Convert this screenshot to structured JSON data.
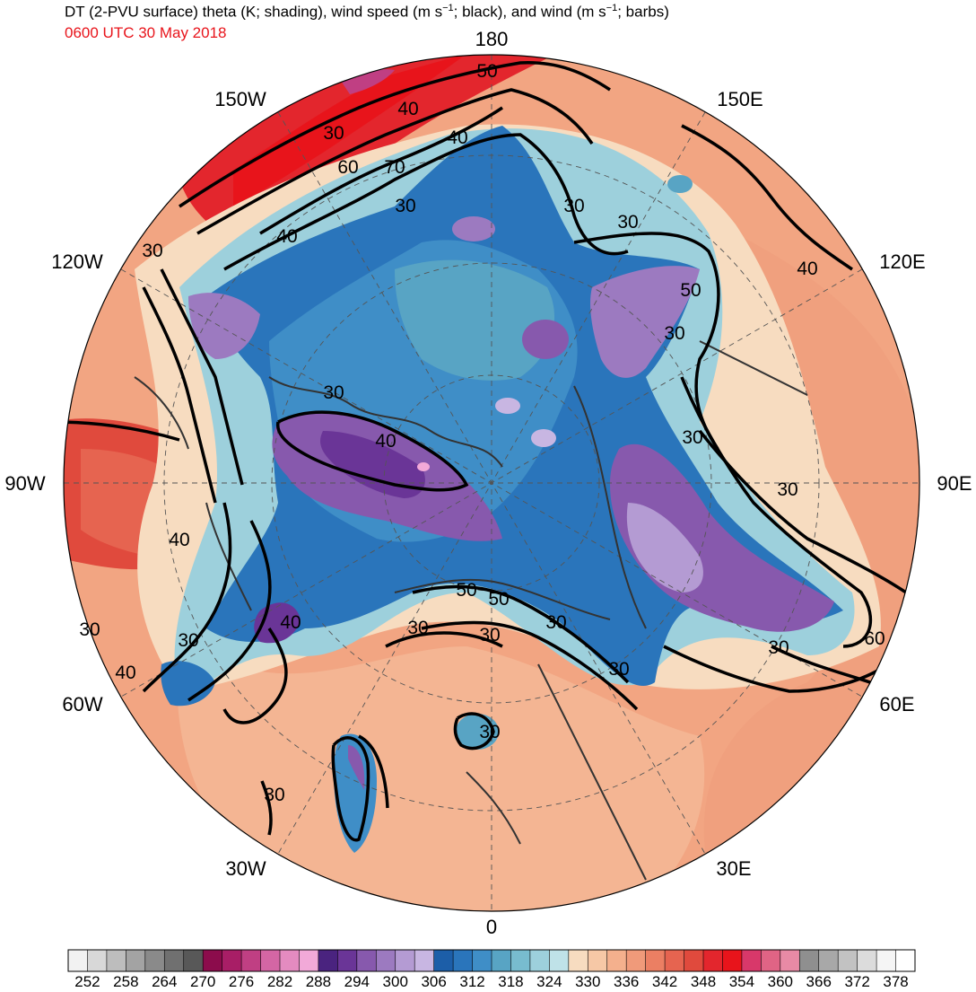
{
  "title": {
    "part1": "DT (2-PVU surface) theta (K; shading), wind speed (m s",
    "exp1": "−1",
    "part2": "; black), and wind (m s",
    "exp2": "−1",
    "part3": "; barbs)"
  },
  "valid_time": "0600 UTC 30 May 2018",
  "longitude_labels": [
    "180",
    "150E",
    "120E",
    "90E",
    "60E",
    "30E",
    "0",
    "30W",
    "60W",
    "90W",
    "120W",
    "150W"
  ],
  "colorbar": {
    "tick_labels": [
      "252",
      "258",
      "264",
      "270",
      "276",
      "282",
      "288",
      "294",
      "300",
      "306",
      "312",
      "318",
      "324",
      "330",
      "336",
      "342",
      "348",
      "354",
      "360",
      "366",
      "372",
      "378"
    ],
    "colors": [
      "#f2f2f2",
      "#d8d8d8",
      "#bdbdbd",
      "#a3a3a3",
      "#8a8a8a",
      "#707070",
      "#585858",
      "#8c0c4c",
      "#a81e66",
      "#c03f83",
      "#d466a4",
      "#e48bc0",
      "#f2a9d8",
      "#4a237f",
      "#6a3597",
      "#8759ad",
      "#9c7ac0",
      "#b49bd3",
      "#c8b6e2",
      "#1c5ea8",
      "#2a75bb",
      "#3f8ec7",
      "#58a4c4",
      "#78bccf",
      "#9dd0dc",
      "#bfe2e8",
      "#f7dcc0",
      "#f6c8a6",
      "#f4b08d",
      "#f09a7a",
      "#eb7f63",
      "#e66450",
      "#e04a3d",
      "#e3262d",
      "#e8141b",
      "#d8386a",
      "#e06485",
      "#e88aa5",
      "#8f8f8f",
      "#a8a8a8",
      "#c2c2c2",
      "#dcdcdc",
      "#f5f5f5",
      "#ffffff"
    ]
  },
  "contour_labels": [
    "50",
    "40",
    "30",
    "40",
    "60",
    "70",
    "30",
    "40",
    "30",
    "30",
    "30",
    "40",
    "50",
    "30",
    "30",
    "40",
    "30",
    "30",
    "40",
    "50",
    "30",
    "30",
    "50",
    "30",
    "40",
    "30",
    "30",
    "40",
    "30",
    "60",
    "30",
    "30",
    "30"
  ],
  "colors": {
    "cold": "#2a75bb",
    "cool": "#78bccf",
    "neutral": "#f7dcc0",
    "warm": "#eb7f63",
    "hot": "#e3262d",
    "purple": "#8759ad"
  }
}
